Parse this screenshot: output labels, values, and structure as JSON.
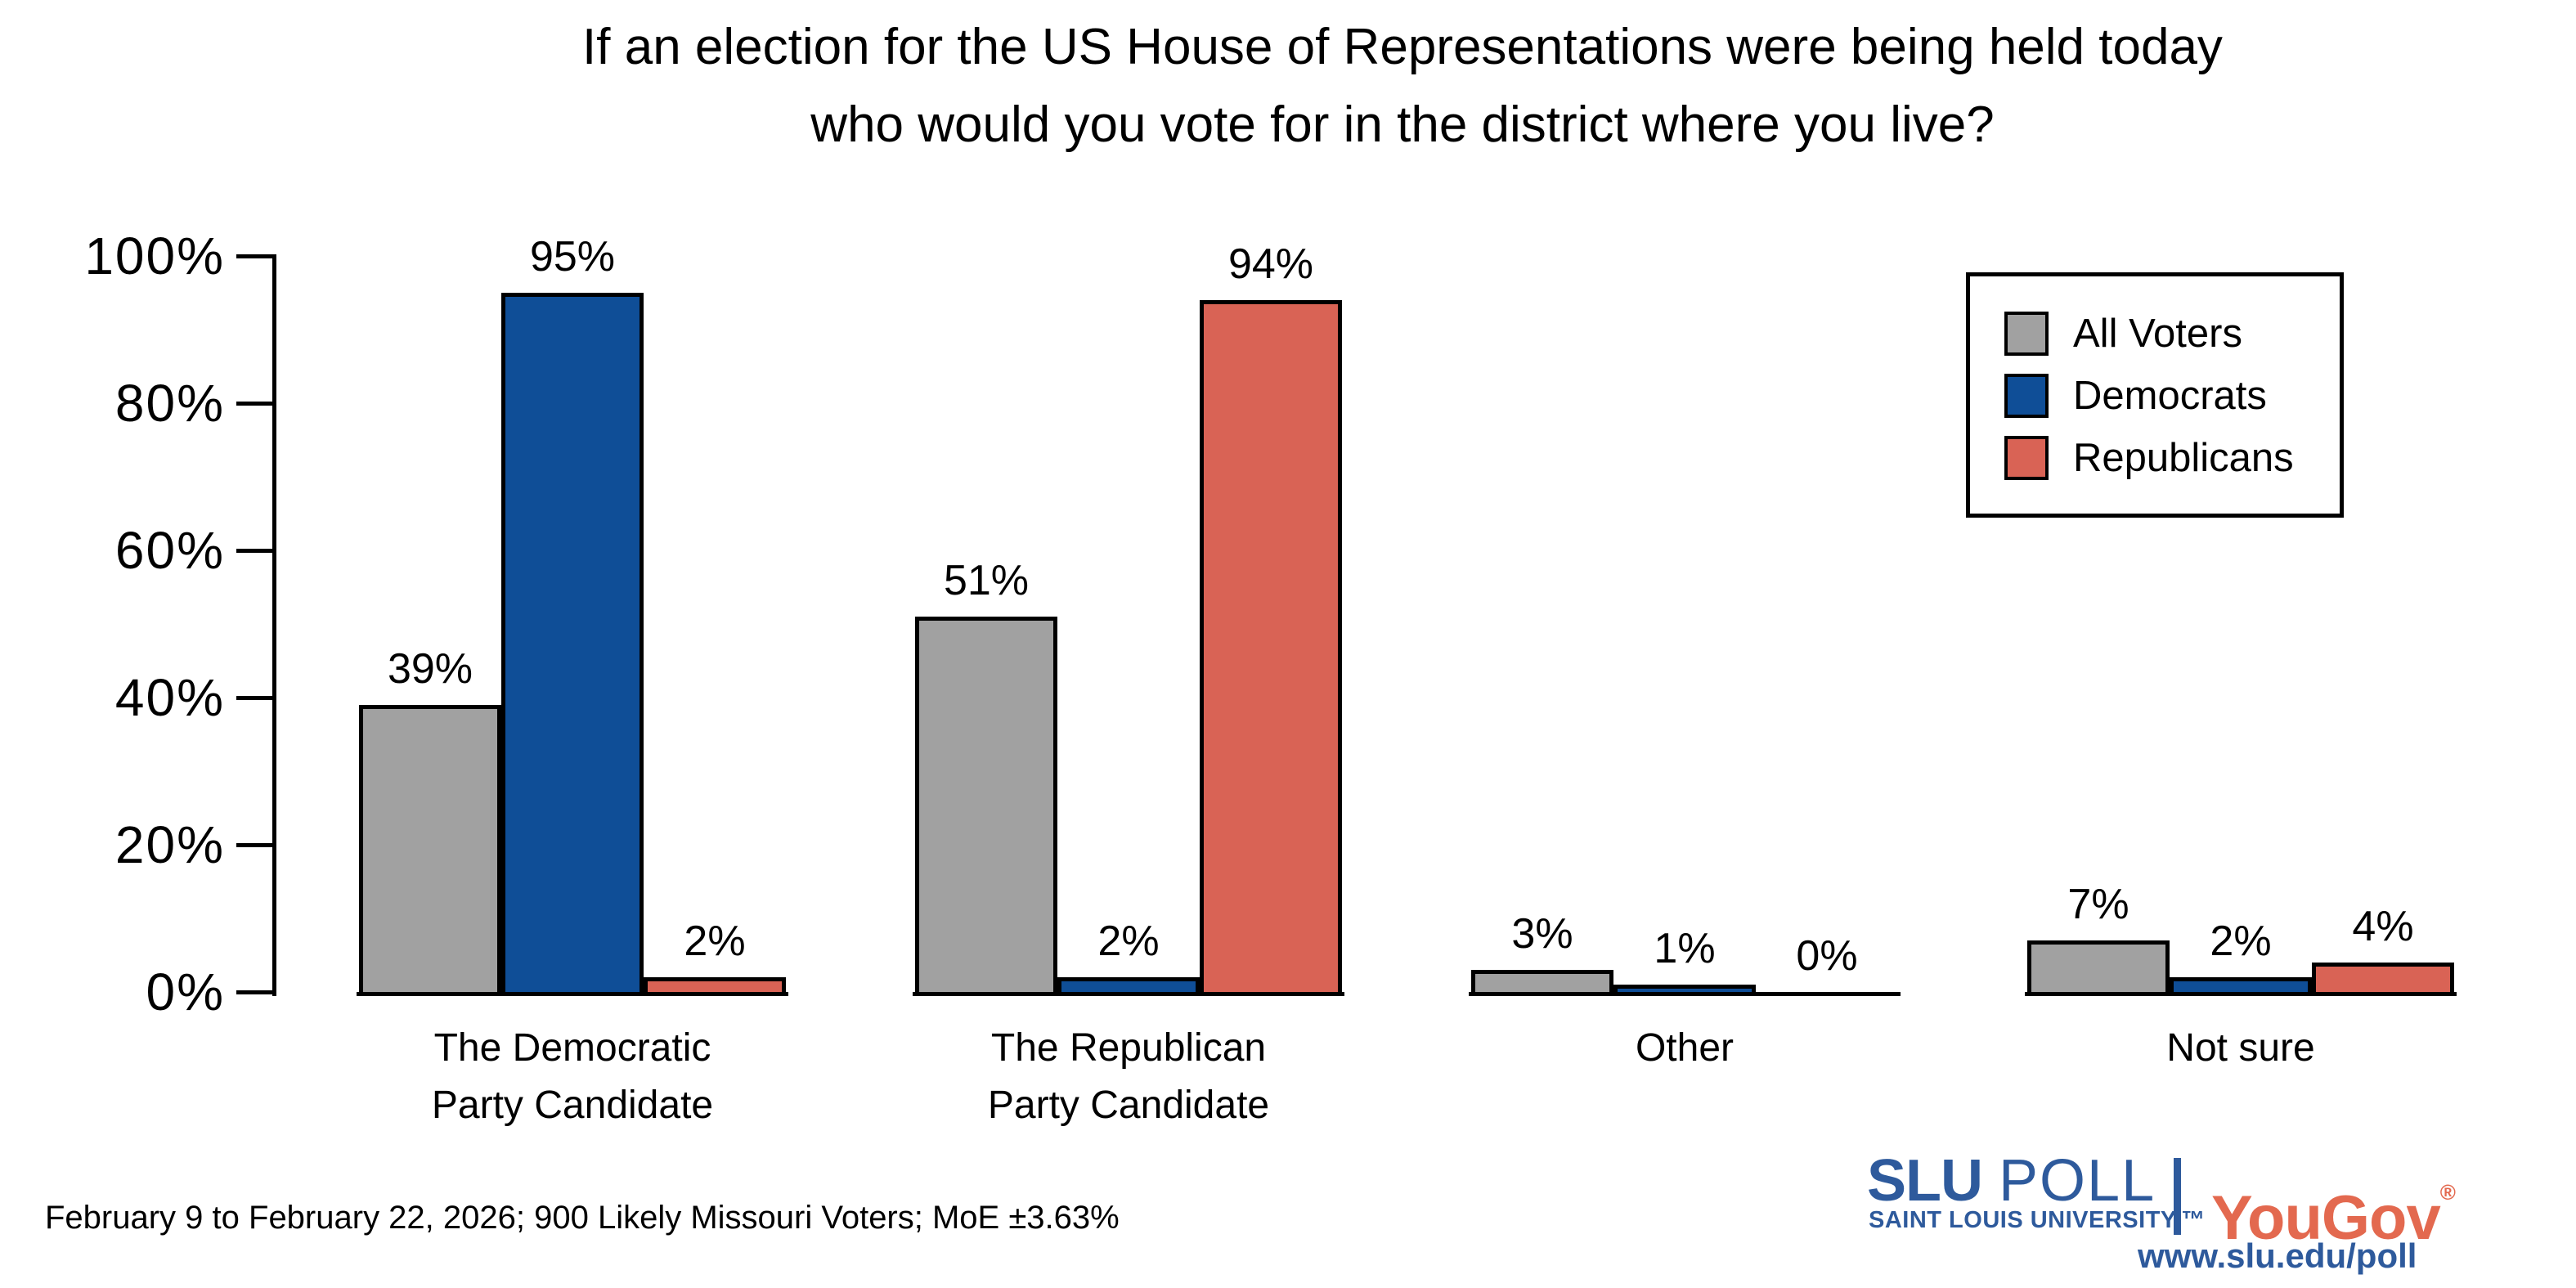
{
  "title": {
    "line1": "If an election for the US House of Representations were being held today",
    "line2": "who would you vote for in the district where you live?"
  },
  "chart_data": {
    "type": "bar",
    "title": "If an election for the US House of Representations were being held today who would you vote for in the district where you live?",
    "categories": [
      "The Democratic Party Candidate",
      "The Republican Party Candidate",
      "Other",
      "Not sure"
    ],
    "category_label_lines": [
      [
        "The Democratic",
        "Party Candidate"
      ],
      [
        "The Republican",
        "Party Candidate"
      ],
      [
        "Other"
      ],
      [
        "Not sure"
      ]
    ],
    "series": [
      {
        "name": "All Voters",
        "color": "#a1a1a1",
        "values": [
          39,
          51,
          3,
          7
        ]
      },
      {
        "name": "Democrats",
        "color": "#0f4e97",
        "values": [
          95,
          2,
          1,
          2
        ]
      },
      {
        "name": "Republicans",
        "color": "#d96355",
        "values": [
          2,
          94,
          0,
          4
        ]
      }
    ],
    "value_suffix": "%",
    "y_axis": {
      "ticks": [
        "0%",
        "20%",
        "40%",
        "60%",
        "80%",
        "100%"
      ],
      "min": 0,
      "max": 100,
      "grid": false
    },
    "legend_position": "top-right",
    "bar_outline_color": "#000000"
  },
  "footer": {
    "source": "February 9 to February 22, 2026; 900 Likely Missouri Voters; MoE ±3.63%"
  },
  "branding": {
    "slu": "SLU",
    "poll": "POLL",
    "slu_sub": "SAINT LOUIS UNIVERSITY.™",
    "yougov": "YouGov",
    "yougov_reg": "®",
    "url": "www.slu.edu/poll",
    "slu_blue": "#2e5a9c",
    "yougov_red": "#e3694f"
  }
}
